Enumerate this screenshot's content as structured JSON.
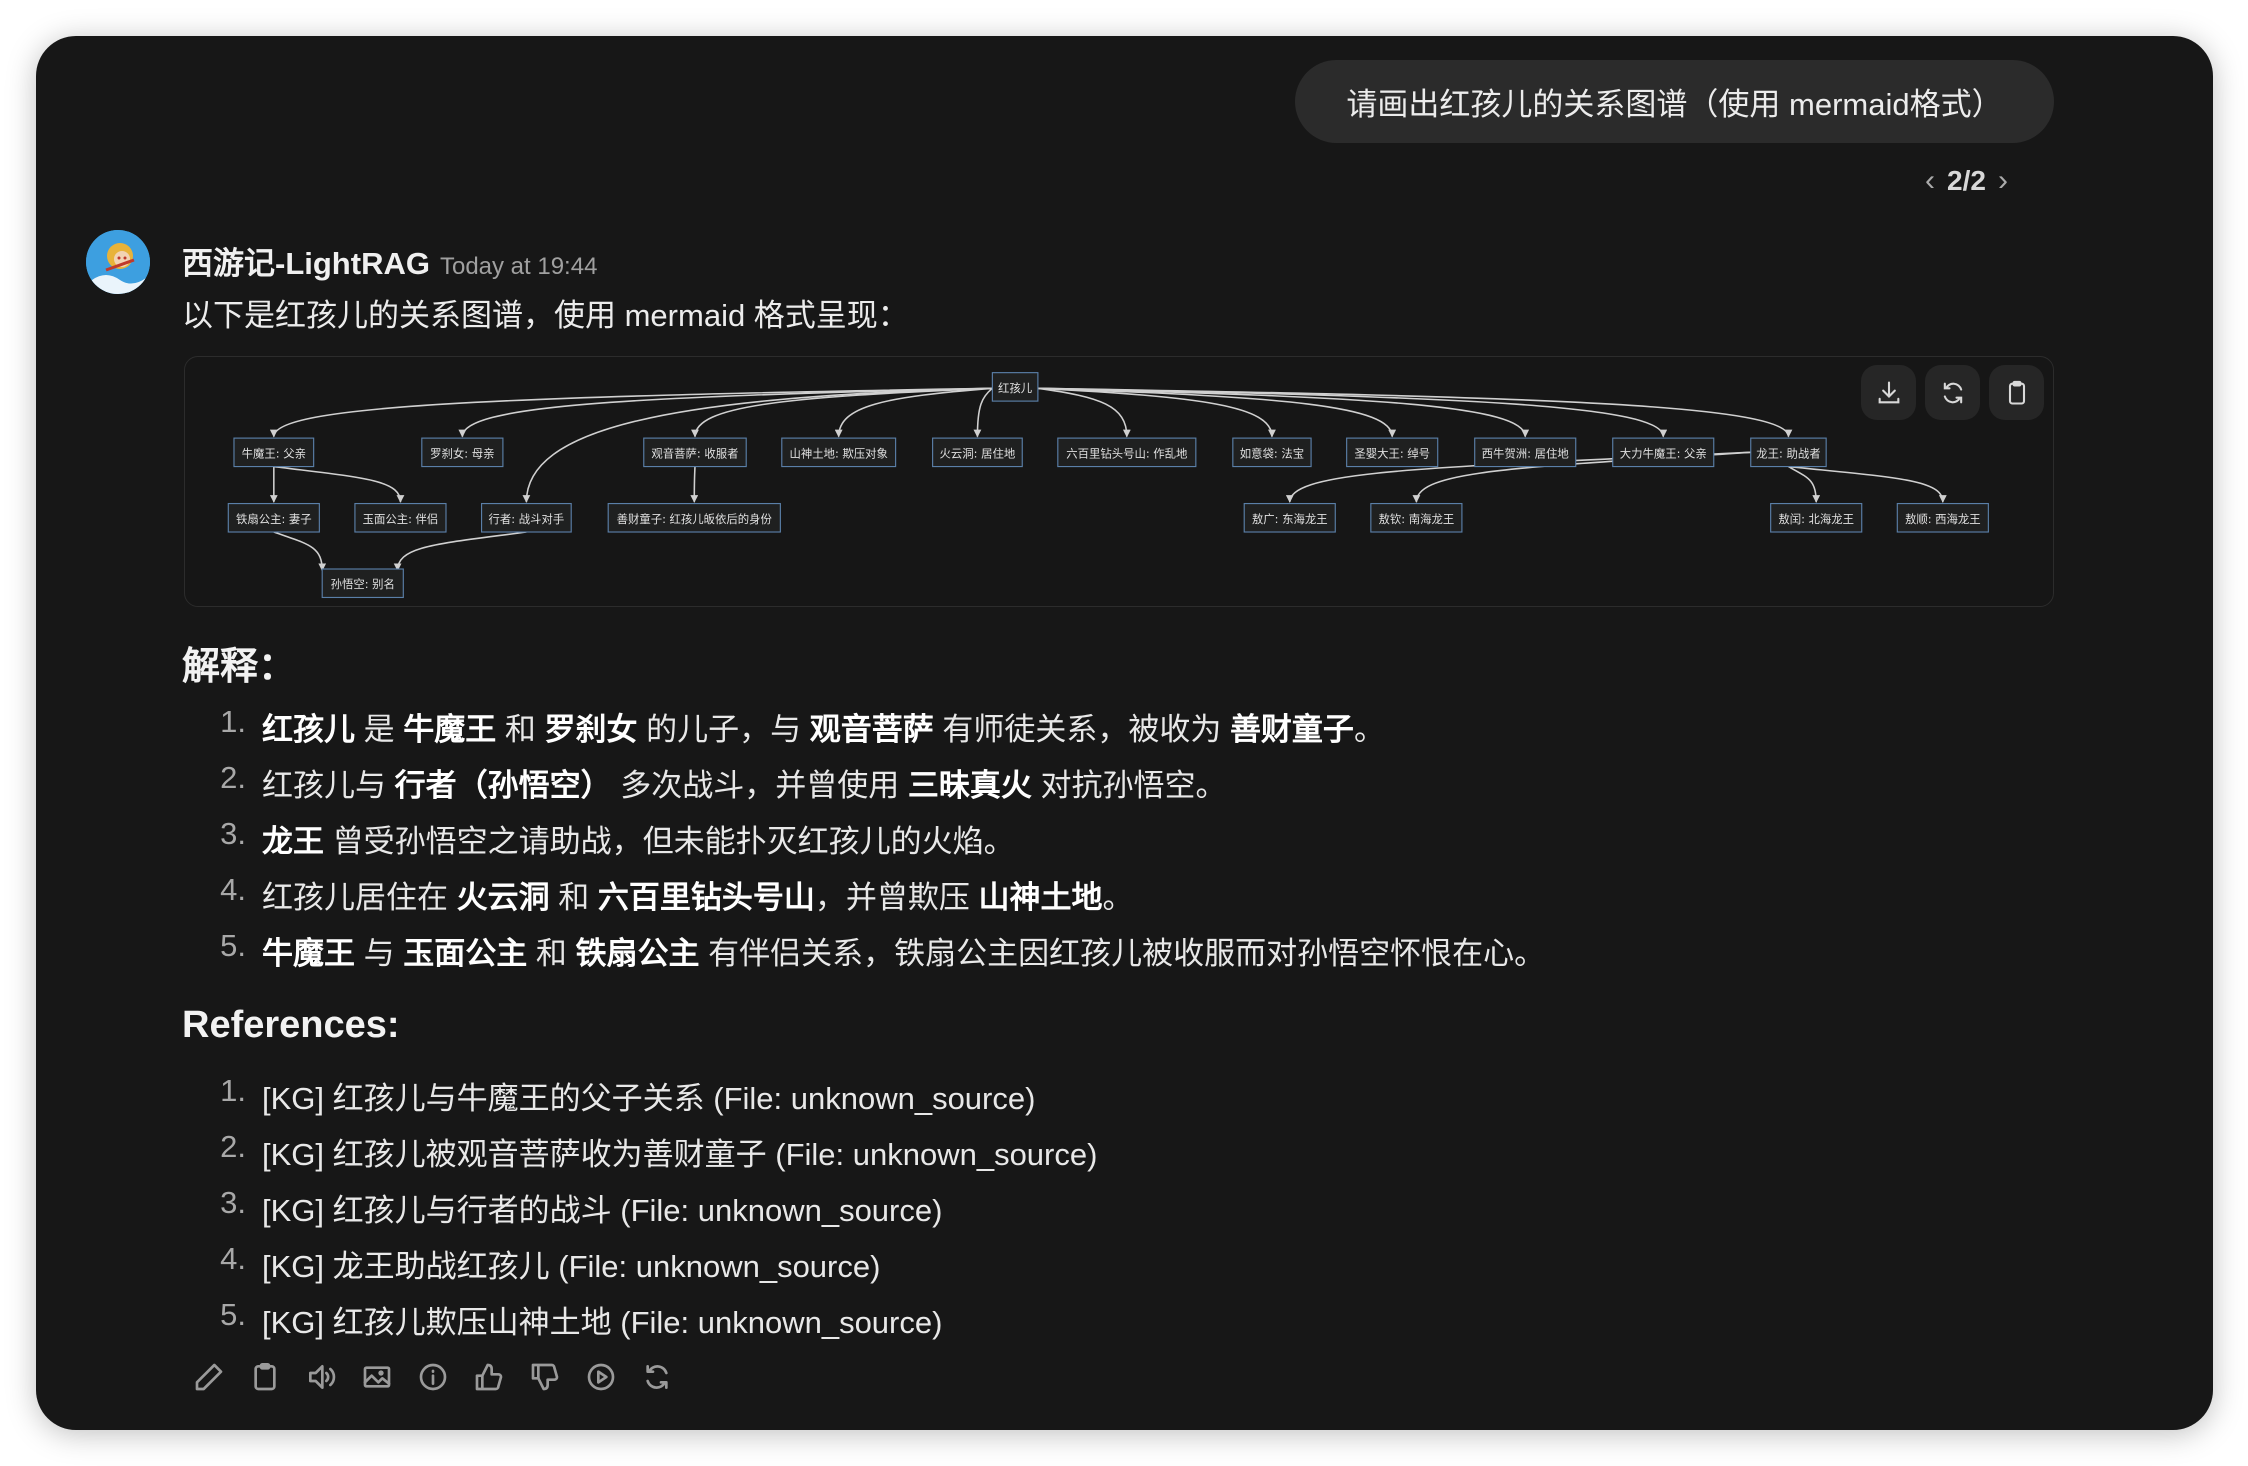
{
  "user_message": "请画出红孩儿的关系图谱（使用 mermaid格式）",
  "pager": {
    "label": "2/2"
  },
  "assistant": {
    "name": "西游记-LightRAG",
    "timestamp": "Today at 19:44",
    "intro": "以下是红孩儿的关系图谱，使用 mermaid 格式呈现："
  },
  "diagram": {
    "buttons": [
      {
        "icon": "download-icon"
      },
      {
        "icon": "refresh-icon"
      },
      {
        "icon": "clipboard-icon"
      }
    ],
    "nodes": {
      "root": "红孩儿",
      "nmw": "牛魔王: 父亲",
      "lcn": "罗刹女: 母亲",
      "gy": "观音菩萨: 收服者",
      "ss": "山神土地: 欺压对象",
      "hyd": "火云洞: 居住地",
      "lbl": "六百里钻头号山: 作乱地",
      "ryd": "如意袋: 法宝",
      "sy": "圣婴大王: 绰号",
      "xn": "西牛贺洲: 居住地",
      "dl": "大力牛魔王: 父亲",
      "lw": "龙王: 助战者",
      "ts": "铁扇公主: 妻子",
      "ym": "玉面公主: 伴侣",
      "xz": "行者: 战斗对手",
      "sc": "善财童子: 红孩儿皈依后的身份",
      "ag": "敖广: 东海龙王",
      "aq": "敖钦: 南海龙王",
      "ar": "敖闰: 北海龙王",
      "as": "敖顺: 西海龙王",
      "swk": "孙悟空: 别名"
    },
    "edges": [
      [
        "root",
        "nmw"
      ],
      [
        "root",
        "lcn"
      ],
      [
        "root",
        "xz"
      ],
      [
        "root",
        "gy"
      ],
      [
        "root",
        "ss"
      ],
      [
        "root",
        "hyd"
      ],
      [
        "root",
        "lbl"
      ],
      [
        "root",
        "ryd"
      ],
      [
        "root",
        "sy"
      ],
      [
        "root",
        "xn"
      ],
      [
        "root",
        "dl"
      ],
      [
        "root",
        "lw"
      ],
      [
        "nmw",
        "ts"
      ],
      [
        "nmw",
        "ym"
      ],
      [
        "gy",
        "sc"
      ],
      [
        "ts",
        "swk"
      ],
      [
        "xz",
        "swk"
      ],
      [
        "lw",
        "ag"
      ],
      [
        "lw",
        "aq"
      ],
      [
        "lw",
        "ar"
      ],
      [
        "lw",
        "as"
      ]
    ]
  },
  "explanation": {
    "heading": "解释：",
    "items": [
      [
        {
          "t": "红孩儿",
          "b": true
        },
        {
          "t": " 是 "
        },
        {
          "t": "牛魔王",
          "b": true
        },
        {
          "t": " 和 "
        },
        {
          "t": "罗刹女",
          "b": true
        },
        {
          "t": " 的儿子，与 "
        },
        {
          "t": "观音菩萨",
          "b": true
        },
        {
          "t": " 有师徒关系，被收为 "
        },
        {
          "t": "善财童子",
          "b": true
        },
        {
          "t": "。"
        }
      ],
      [
        {
          "t": "红孩儿与 "
        },
        {
          "t": "行者（孙悟空）",
          "b": true
        },
        {
          "t": " 多次战斗，并曾使用 "
        },
        {
          "t": "三昧真火",
          "b": true
        },
        {
          "t": " 对抗孙悟空。"
        }
      ],
      [
        {
          "t": "龙王",
          "b": true
        },
        {
          "t": " 曾受孙悟空之请助战，但未能扑灭红孩儿的火焰。"
        }
      ],
      [
        {
          "t": "红孩儿居住在 "
        },
        {
          "t": "火云洞",
          "b": true
        },
        {
          "t": " 和 "
        },
        {
          "t": "六百里钻头号山",
          "b": true
        },
        {
          "t": "，并曾欺压 "
        },
        {
          "t": "山神土地",
          "b": true
        },
        {
          "t": "。"
        }
      ],
      [
        {
          "t": "牛魔王",
          "b": true
        },
        {
          "t": " 与 "
        },
        {
          "t": "玉面公主",
          "b": true
        },
        {
          "t": " 和 "
        },
        {
          "t": "铁扇公主",
          "b": true
        },
        {
          "t": " 有伴侣关系，铁扇公主因红孩儿被收服而对孙悟空怀恨在心。"
        }
      ]
    ]
  },
  "references": {
    "heading": "References:",
    "items": [
      "[KG] 红孩儿与牛魔王的父子关系 (File: unknown_source)",
      "[KG] 红孩儿被观音菩萨收为善财童子 (File: unknown_source)",
      "[KG] 红孩儿与行者的战斗 (File: unknown_source)",
      "[KG] 龙王助战红孩儿 (File: unknown_source)",
      "[KG] 红孩儿欺压山神土地 (File: unknown_source)"
    ]
  },
  "actions": [
    "edit-icon",
    "copy-icon",
    "read-aloud-icon",
    "image-icon",
    "info-icon",
    "thumbs-up-icon",
    "thumbs-down-icon",
    "play-icon",
    "regenerate-icon"
  ],
  "colors": {
    "background": "#171717",
    "bubble": "#2b2b2b",
    "node_fill": "#1f2020",
    "node_border": "#5a7fa8",
    "edge": "#d0d0d0"
  }
}
